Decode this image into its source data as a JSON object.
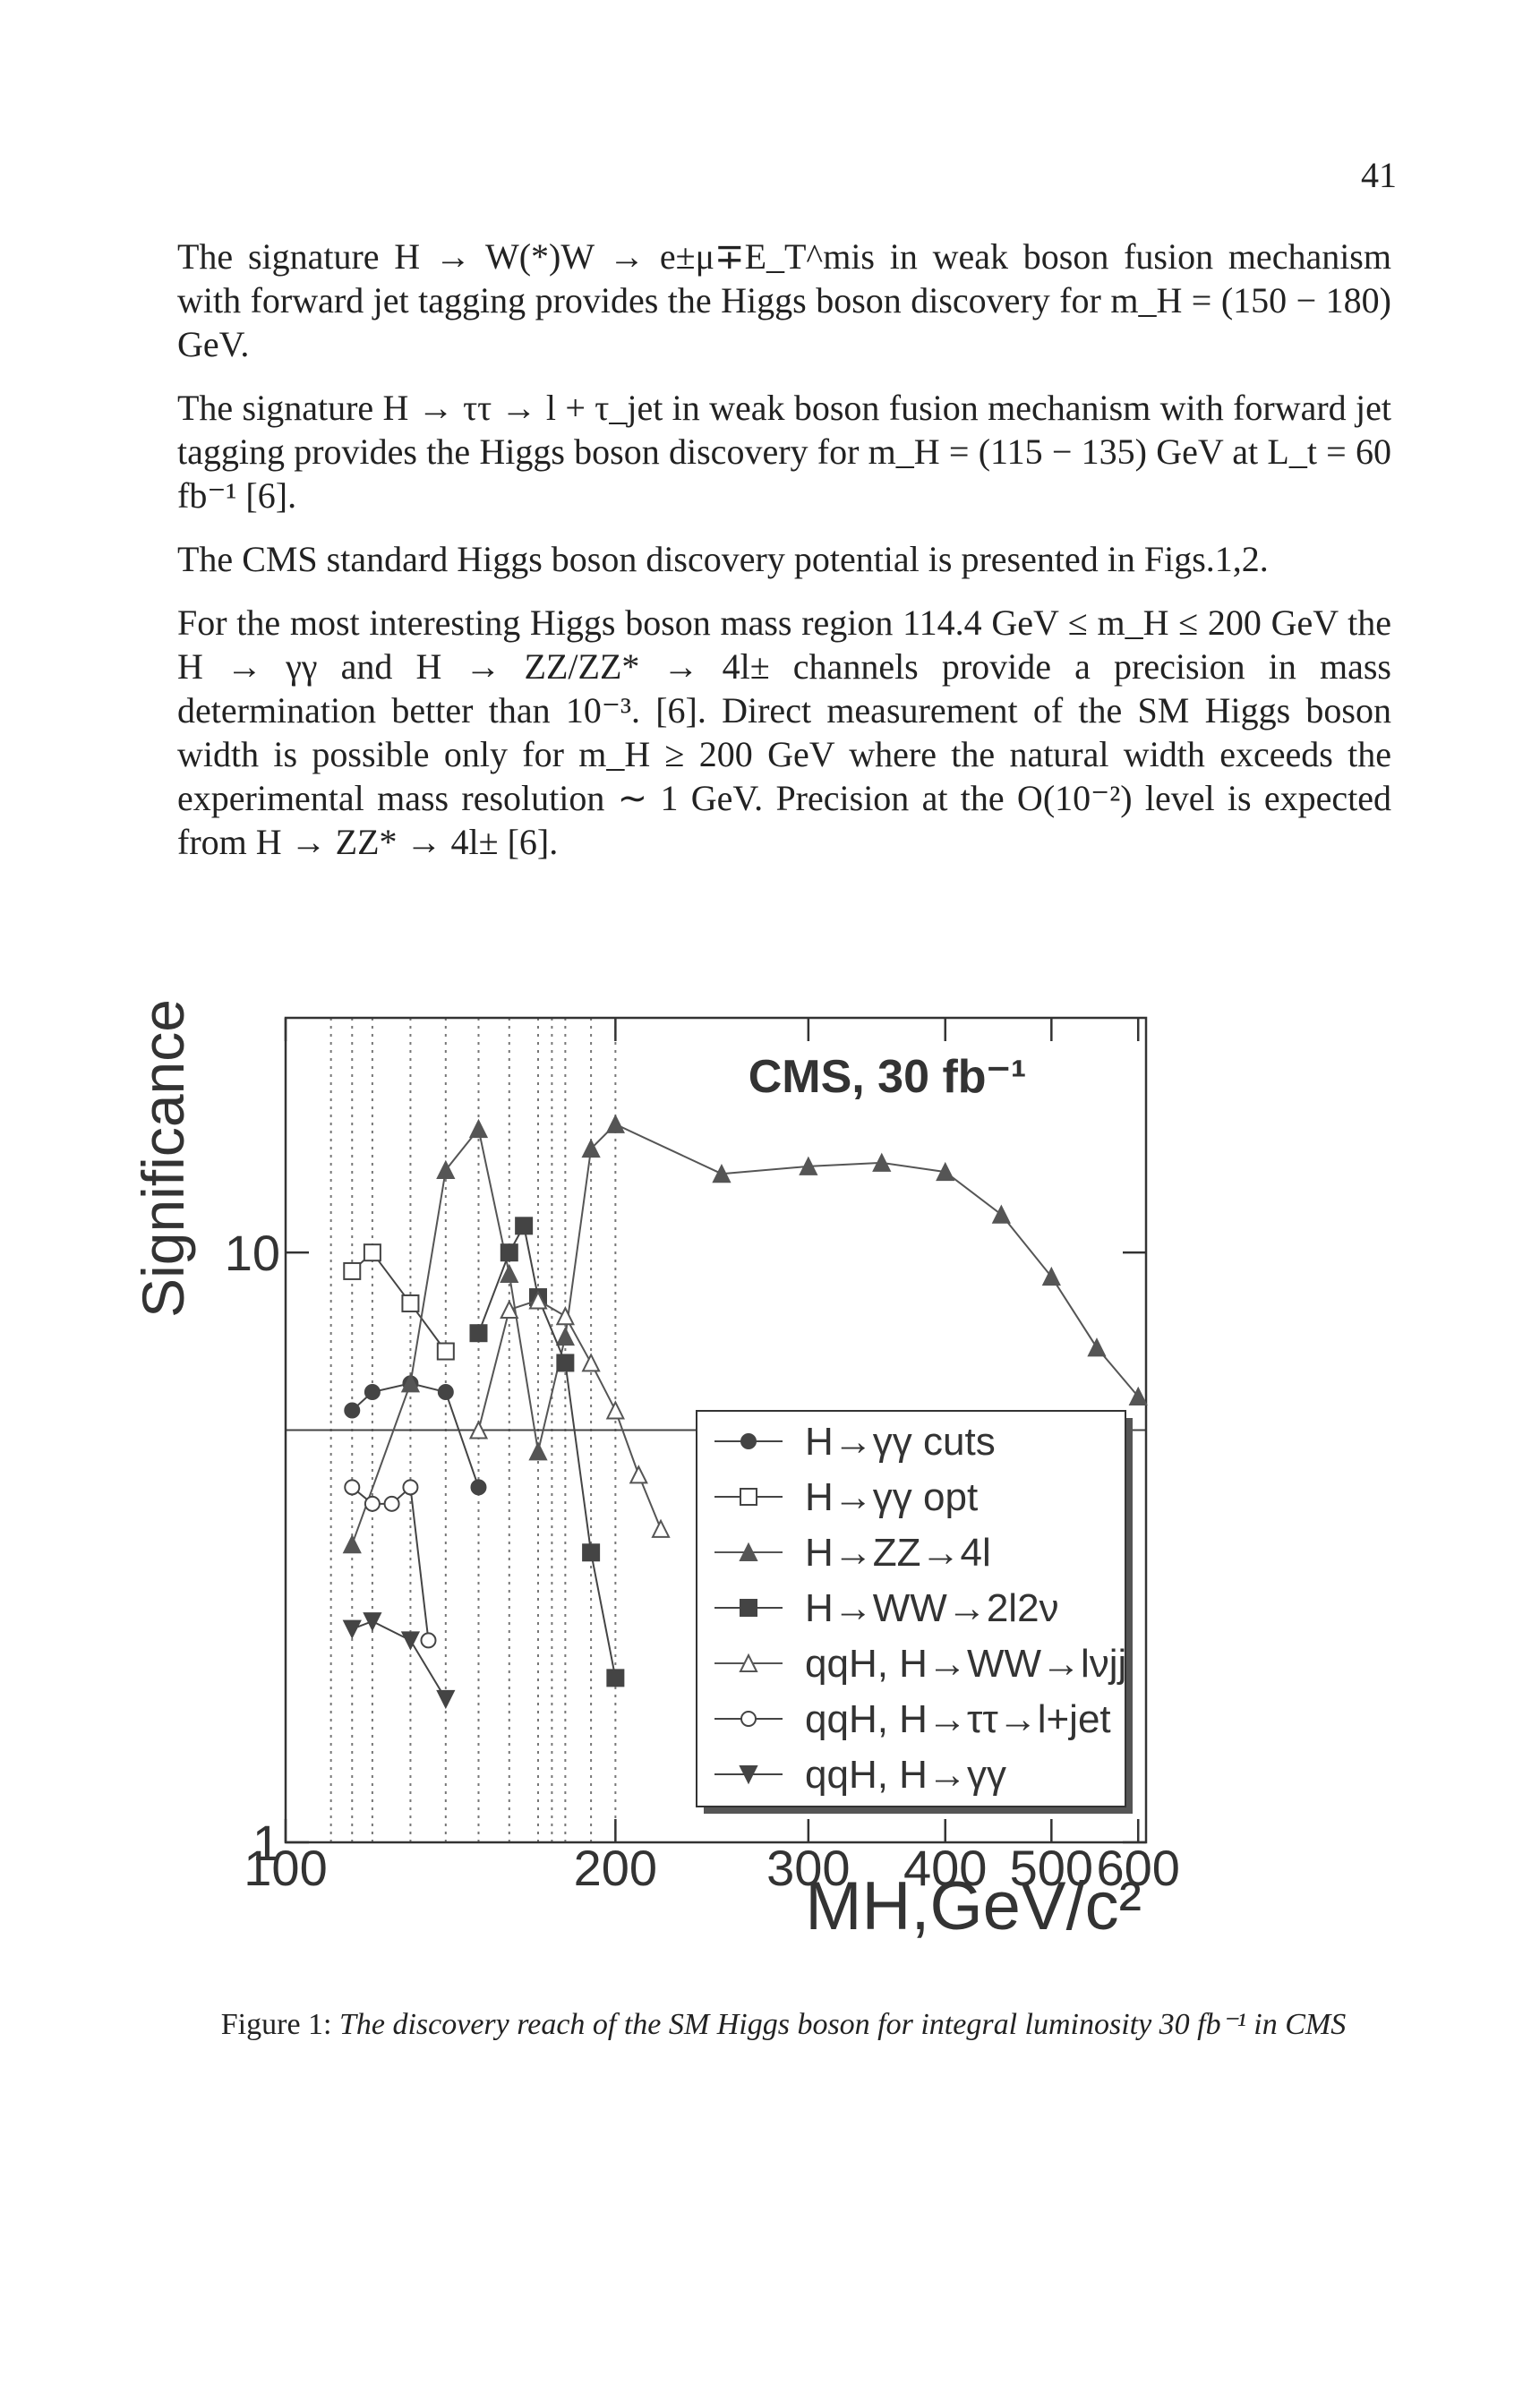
{
  "page_number": "41",
  "paragraphs": [
    "The signature H → W(*)W → e±μ∓E_T^mis in weak boson fusion mechanism with forward jet tagging provides the Higgs boson discovery for m_H = (150 − 180) GeV.",
    "The signature H → ττ → l + τ_jet in weak boson fusion mechanism with forward jet tagging provides the Higgs boson discovery for m_H = (115 − 135) GeV at L_t = 60 fb⁻¹ [6].",
    "The CMS standard Higgs boson discovery potential is presented in Figs.1,2.",
    "For the most interesting Higgs boson mass region 114.4 GeV ≤ m_H ≤ 200 GeV the H → γγ and H → ZZ/ZZ* → 4l± channels provide a precision in mass determination better than 10⁻³. [6]. Direct measurement of the SM Higgs boson width is possible only for m_H ≥ 200 GeV where the natural width exceeds the experimental mass resolution ∼ 1 GeV. Precision at the O(10⁻²) level is expected from H → ZZ* → 4l± [6]."
  ],
  "chart_data": {
    "type": "line",
    "title": "CMS, 30 fb⁻¹",
    "x_label": "MH,GeV/c²",
    "y_label": "Significance",
    "log_x": true,
    "log_y": true,
    "xlim": [
      100,
      610
    ],
    "ylim": [
      1,
      25
    ],
    "xticks": [
      100,
      200,
      300,
      400,
      500,
      600
    ],
    "yticks": [
      1,
      10
    ],
    "hline": 5,
    "vlines": [
      110,
      115,
      120,
      130,
      140,
      150,
      160,
      170,
      175,
      180,
      190,
      200
    ],
    "legend": "lower right",
    "series": [
      {
        "name": "H→γγ cuts",
        "color": "#444444",
        "marker": "circle-filled",
        "x": [
          115,
          120,
          130,
          140,
          150
        ],
        "values": [
          5.4,
          5.8,
          6.0,
          5.8,
          4.0
        ]
      },
      {
        "name": "H→γγ opt",
        "color": "#444444",
        "marker": "square-open",
        "x": [
          115,
          120,
          130,
          140
        ],
        "values": [
          9.3,
          10.0,
          8.2,
          6.8
        ]
      },
      {
        "name": "H→ZZ→4l",
        "color": "#555555",
        "marker": "triangle-filled",
        "x": [
          115,
          130,
          140,
          150,
          160,
          170,
          180,
          190,
          200,
          250,
          300,
          350,
          400,
          450,
          500,
          550,
          600
        ],
        "values": [
          3.2,
          6.0,
          13.8,
          16.2,
          9.2,
          4.6,
          7.2,
          15.0,
          16.5,
          13.6,
          14.0,
          14.2,
          13.7,
          11.6,
          9.1,
          6.9,
          5.7
        ]
      },
      {
        "name": "H→WW→2l2ν",
        "color": "#444444",
        "marker": "square-filled",
        "x": [
          150,
          160,
          165,
          170,
          180,
          190,
          200
        ],
        "values": [
          7.3,
          10.0,
          11.1,
          8.4,
          6.5,
          3.1,
          1.9
        ]
      },
      {
        "name": "qqH, H→WW→lνjj",
        "color": "#555555",
        "marker": "triangle-open",
        "x": [
          150,
          160,
          170,
          180,
          190,
          200,
          210,
          220
        ],
        "values": [
          5.0,
          8.0,
          8.3,
          7.8,
          6.5,
          5.4,
          4.2,
          3.4
        ]
      },
      {
        "name": "qqH, H→ττ→l+jet",
        "color": "#444444",
        "marker": "circle-open",
        "x": [
          115,
          120,
          125,
          130,
          135
        ],
        "values": [
          4.0,
          3.75,
          3.75,
          4.0,
          2.2
        ]
      },
      {
        "name": "qqH, H→γγ",
        "color": "#444444",
        "marker": "triangle-down-filled",
        "x": [
          115,
          120,
          130,
          140
        ],
        "values": [
          2.3,
          2.37,
          2.2,
          1.75
        ]
      }
    ]
  },
  "caption": {
    "label": "Figure 1:",
    "text": "The discovery reach of the SM Higgs boson for integral luminosity 30 fb⁻¹ in CMS"
  }
}
